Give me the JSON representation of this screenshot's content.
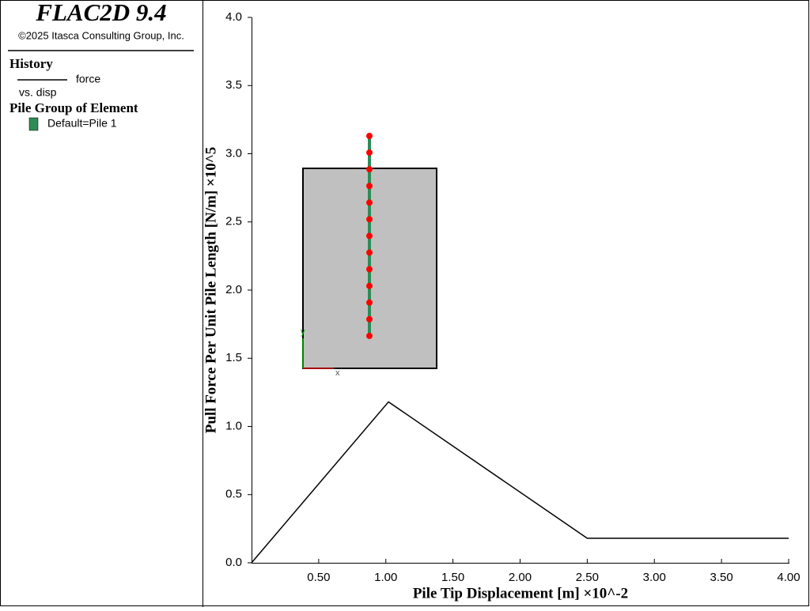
{
  "legend_panel": {
    "title": "FLAC2D 9.4",
    "copyright": "©2025 Itasca Consulting Group, Inc.",
    "history_heading": "History",
    "history_x_label": "vs. disp",
    "pile_heading": "Pile Group of Element",
    "pile_entry": "Default=Pile 1",
    "pile_color": "#2e8b57"
  },
  "inset": {
    "x_label": "x",
    "y_label": "y"
  },
  "chart_data": {
    "type": "line",
    "x_label": "Pile Tip Displacement [m] ×10^-2",
    "y_label": "Pull Force Per Unit Pile Length [N/m] ×10^5",
    "x": [
      0,
      1.02,
      2.5,
      4.0
    ],
    "series": [
      {
        "name": "force",
        "color": "#000000",
        "values": [
          0,
          1.18,
          0.18,
          0.18
        ]
      }
    ],
    "xlim": [
      0,
      4
    ],
    "ylim": [
      0,
      4
    ],
    "xticks": [
      {
        "value": 0.5,
        "label": "0.50"
      },
      {
        "value": 1,
        "label": "1.00"
      },
      {
        "value": 1.5,
        "label": "1.50"
      },
      {
        "value": 2,
        "label": "2.00"
      },
      {
        "value": 2.5,
        "label": "2.50"
      },
      {
        "value": 3,
        "label": "3.00"
      },
      {
        "value": 3.5,
        "label": "3.50"
      },
      {
        "value": 4,
        "label": "4.00"
      }
    ],
    "yticks": [
      {
        "value": 0,
        "label": "0.0"
      },
      0.5,
      {
        "value": 1,
        "label": "1.0"
      },
      1.5,
      {
        "value": 2,
        "label": "2.0"
      },
      2.5,
      {
        "value": 3,
        "label": "3.0"
      },
      3.5,
      {
        "value": 4,
        "label": "4.0"
      }
    ]
  }
}
